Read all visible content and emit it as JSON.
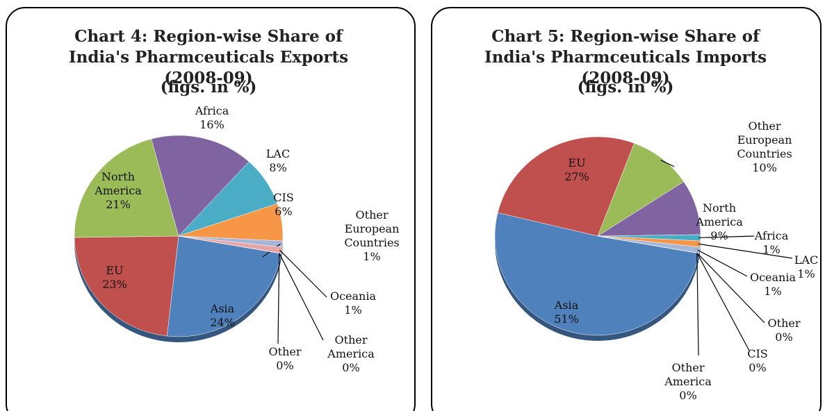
{
  "chart_data": [
    {
      "type": "pie",
      "title": "Chart 4: Region-wise Share of India's Pharmceuticals Exports (2008-09)",
      "subtitle": "(figs. in %)",
      "categories": [
        "Asia",
        "EU",
        "North America",
        "Africa",
        "LAC",
        "CIS",
        "Other European Countries",
        "Oceania",
        "Other America",
        "Other"
      ],
      "values": [
        24,
        23,
        21,
        16,
        8,
        6,
        1,
        1,
        0,
        0
      ],
      "value_labels": [
        "24%",
        "23%",
        "21%",
        "16%",
        "8%",
        "6%",
        "1%",
        "1%",
        "0%",
        "0%"
      ],
      "colors": [
        "#4f81bd",
        "#c0504d",
        "#9bbb59",
        "#8064a2",
        "#4bacc6",
        "#f79646",
        "#a5b6d8",
        "#e6a5a4",
        "#cfdfb0",
        "#b9add0"
      ]
    },
    {
      "type": "pie",
      "title": "Chart 5: Region-wise Share of India's Pharmceuticals Imports (2008-09)",
      "subtitle": "(figs. in %)",
      "categories": [
        "Asia",
        "EU",
        "Other European Countries",
        "North America",
        "Africa",
        "LAC",
        "Oceania",
        "Other",
        "CIS",
        "Other America"
      ],
      "values": [
        51,
        27,
        10,
        9,
        1,
        1,
        1,
        0,
        0,
        0
      ],
      "value_labels": [
        "51%",
        "27%",
        "10%",
        "9%",
        "1%",
        "1%",
        "1%",
        "0%",
        "0%",
        "0%"
      ],
      "colors": [
        "#4f81bd",
        "#c0504d",
        "#9bbb59",
        "#8064a2",
        "#4bacc6",
        "#f79646",
        "#a5b6d8",
        "#e6a5a4",
        "#cfdfb0",
        "#b9add0"
      ]
    }
  ]
}
